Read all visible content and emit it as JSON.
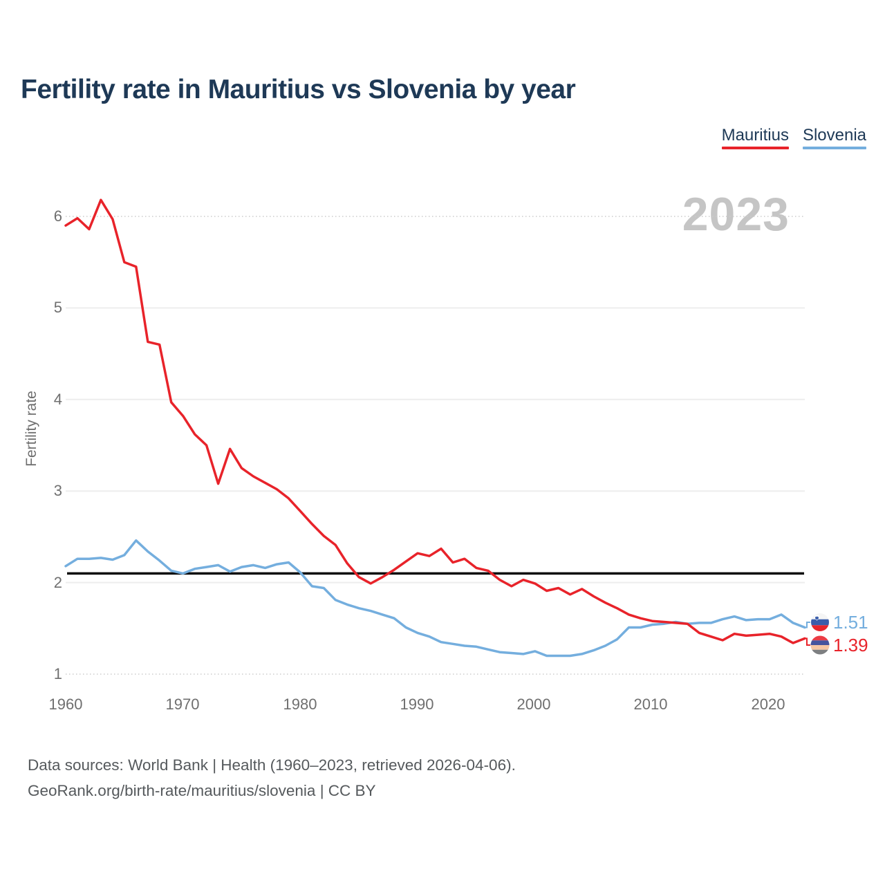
{
  "title": "Fertility rate in Mauritius vs Slovenia by year",
  "watermark_year": "2023",
  "legend": [
    {
      "label": "Mauritius",
      "color": "#e8232a"
    },
    {
      "label": "Slovenia",
      "color": "#74aede"
    }
  ],
  "colors": {
    "mauritius_red": "#e8232a",
    "slovenia_blue": "#74aede",
    "title_navy": "#1e3956",
    "axis_gray": "#6f6f6f",
    "watermark_gray": "#c5c5c5",
    "reference_line_black": "#0a0a0a",
    "gridline": "#ededed"
  },
  "end_labels": {
    "slovenia": {
      "value": "1.51",
      "flag": "slovenia-flag-icon"
    },
    "mauritius": {
      "value": "1.39",
      "flag": "mauritius-flag-icon"
    }
  },
  "footer": {
    "line1": "Data sources: World Bank | Health (1960–2023, retrieved 2026-04-06).",
    "line2": "GeoRank.org/birth-rate/mauritius/slovenia | CC BY"
  },
  "chart_data": {
    "type": "line",
    "title": "Fertility rate in Mauritius vs Slovenia by year",
    "xlabel": "",
    "ylabel": "Fertility rate",
    "xlim": [
      1960,
      2023
    ],
    "ylim": [
      1,
      6.45
    ],
    "grid": "horizontal",
    "reference_line_y": 2.1,
    "yticks": [
      "6",
      "5",
      "4",
      "3",
      "2",
      "1"
    ],
    "xticks": [
      "1960",
      "1970",
      "1980",
      "1990",
      "2000",
      "2010",
      "2020"
    ],
    "x": [
      1960,
      1961,
      1962,
      1963,
      1964,
      1965,
      1966,
      1967,
      1968,
      1969,
      1970,
      1971,
      1972,
      1973,
      1974,
      1975,
      1976,
      1977,
      1978,
      1979,
      1980,
      1981,
      1982,
      1983,
      1984,
      1985,
      1986,
      1987,
      1988,
      1989,
      1990,
      1991,
      1992,
      1993,
      1994,
      1995,
      1996,
      1997,
      1998,
      1999,
      2000,
      2001,
      2002,
      2003,
      2004,
      2005,
      2006,
      2007,
      2008,
      2009,
      2010,
      2011,
      2012,
      2013,
      2014,
      2015,
      2016,
      2017,
      2018,
      2019,
      2020,
      2021,
      2022,
      2023
    ],
    "series": [
      {
        "name": "Slovenia",
        "color": "#74aede",
        "values": [
          2.18,
          2.26,
          2.26,
          2.27,
          2.25,
          2.3,
          2.46,
          2.34,
          2.24,
          2.13,
          2.1,
          2.15,
          2.17,
          2.19,
          2.12,
          2.17,
          2.19,
          2.16,
          2.2,
          2.22,
          2.11,
          1.96,
          1.94,
          1.81,
          1.76,
          1.72,
          1.69,
          1.65,
          1.61,
          1.51,
          1.45,
          1.41,
          1.35,
          1.33,
          1.31,
          1.3,
          1.27,
          1.24,
          1.23,
          1.22,
          1.25,
          1.2,
          1.2,
          1.2,
          1.22,
          1.26,
          1.31,
          1.38,
          1.51,
          1.51,
          1.54,
          1.55,
          1.57,
          1.55,
          1.56,
          1.56,
          1.6,
          1.63,
          1.59,
          1.6,
          1.6,
          1.65,
          1.56,
          1.51
        ]
      },
      {
        "name": "Mauritius",
        "color": "#e8232a",
        "values": [
          5.9,
          5.98,
          5.86,
          6.18,
          5.97,
          5.5,
          5.45,
          4.63,
          4.6,
          3.97,
          3.82,
          3.62,
          3.5,
          3.08,
          3.46,
          3.25,
          3.16,
          3.09,
          3.02,
          2.92,
          2.78,
          2.64,
          2.51,
          2.41,
          2.21,
          2.06,
          1.99,
          2.06,
          2.14,
          2.23,
          2.32,
          2.29,
          2.37,
          2.22,
          2.26,
          2.16,
          2.13,
          2.03,
          1.96,
          2.03,
          1.99,
          1.91,
          1.94,
          1.87,
          1.93,
          1.85,
          1.78,
          1.72,
          1.65,
          1.61,
          1.58,
          1.57,
          1.56,
          1.55,
          1.45,
          1.41,
          1.37,
          1.44,
          1.42,
          1.43,
          1.44,
          1.41,
          1.34,
          1.39
        ]
      }
    ],
    "legend_position": "top-right"
  }
}
